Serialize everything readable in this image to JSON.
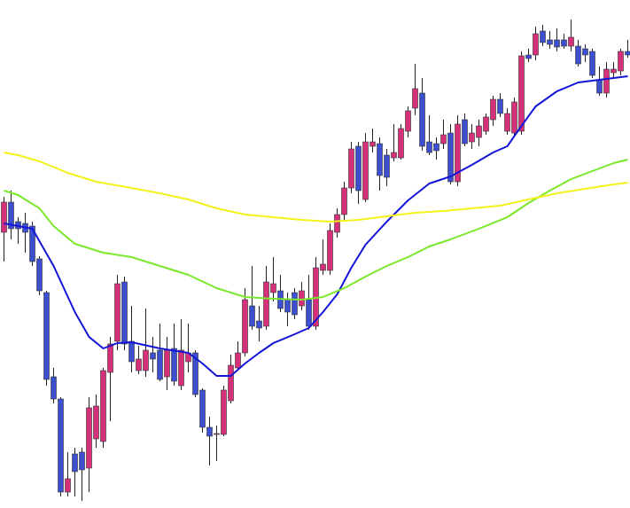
{
  "chart_data": {
    "type": "candlestick",
    "ylim": [
      0,
      573
    ],
    "up_color": "#d6307a",
    "down_color": "#3b4fcf",
    "wick_color": "#222222",
    "open": [
      311,
      345,
      323,
      321,
      318,
      281,
      243,
      148,
      123,
      18,
      61,
      63,
      45,
      78,
      75,
      153,
      188,
      255,
      188,
      155,
      155,
      175,
      178,
      148,
      180,
      138,
      165,
      175,
      133,
      91,
      83,
      83,
      121,
      158,
      175,
      228,
      211,
      205,
      243,
      245,
      235,
      243,
      228,
      235,
      205,
      268,
      268,
      311,
      331,
      361,
      408,
      348,
      408,
      411,
      398,
      395,
      395,
      425,
      451,
      468,
      413,
      411,
      411,
      423,
      368,
      438,
      413,
      418,
      425,
      438,
      461,
      425,
      423,
      425,
      511,
      511,
      538,
      528,
      528,
      528,
      521,
      521,
      518,
      515,
      483,
      468,
      491,
      493,
      515
    ],
    "close": [
      345,
      315,
      315,
      311,
      278,
      245,
      145,
      123,
      18,
      33,
      41,
      43,
      113,
      115,
      155,
      185,
      253,
      185,
      165,
      168,
      178,
      168,
      145,
      178,
      143,
      178,
      175,
      128,
      91,
      81,
      84,
      133,
      161,
      175,
      235,
      205,
      203,
      255,
      253,
      225,
      221,
      218,
      245,
      205,
      271,
      275,
      313,
      331,
      361,
      405,
      358,
      413,
      413,
      375,
      373,
      401,
      428,
      448,
      473,
      408,
      401,
      403,
      421,
      368,
      433,
      411,
      423,
      431,
      441,
      461,
      445,
      445,
      458,
      510,
      507,
      535,
      525,
      523,
      520,
      521,
      531,
      501,
      511,
      488,
      468,
      495,
      495,
      515,
      511
    ],
    "high": [
      351,
      358,
      328,
      333,
      323,
      284,
      245,
      158,
      125,
      63,
      68,
      68,
      125,
      128,
      158,
      193,
      263,
      261,
      228,
      183,
      225,
      193,
      208,
      193,
      208,
      213,
      208,
      178,
      135,
      103,
      93,
      138,
      173,
      188,
      248,
      273,
      228,
      273,
      283,
      263,
      243,
      248,
      255,
      263,
      283,
      303,
      321,
      338,
      368,
      413,
      413,
      423,
      428,
      418,
      405,
      433,
      433,
      453,
      501,
      485,
      443,
      418,
      438,
      433,
      443,
      445,
      433,
      438,
      445,
      465,
      468,
      451,
      463,
      515,
      518,
      543,
      545,
      538,
      541,
      535,
      551,
      528,
      523,
      518,
      498,
      503,
      503,
      518,
      528
    ],
    "low": [
      278,
      303,
      298,
      288,
      273,
      240,
      138,
      118,
      13,
      13,
      13,
      8,
      18,
      68,
      68,
      98,
      178,
      178,
      153,
      151,
      148,
      153,
      143,
      133,
      138,
      133,
      153,
      125,
      85,
      48,
      53,
      81,
      118,
      155,
      171,
      201,
      188,
      201,
      233,
      221,
      205,
      213,
      223,
      201,
      201,
      263,
      263,
      305,
      323,
      355,
      343,
      345,
      401,
      358,
      363,
      391,
      393,
      418,
      443,
      403,
      398,
      393,
      405,
      365,
      363,
      408,
      405,
      408,
      421,
      431,
      441,
      421,
      418,
      421,
      503,
      505,
      521,
      518,
      515,
      518,
      515,
      498,
      503,
      485,
      465,
      463,
      485,
      488,
      508
    ],
    "lines": [
      {
        "color": "#1414d8",
        "x": [
          0,
          4,
          7,
          10,
          12,
          14,
          16,
          18,
          22,
          26,
          28,
          30,
          32,
          34,
          36,
          38,
          41,
          43,
          45,
          47,
          49,
          51,
          54,
          57,
          60,
          63,
          66,
          69,
          71,
          73,
          75,
          78,
          81,
          84,
          87,
          88
        ],
        "values": [
          321,
          315,
          273,
          221,
          193,
          180,
          186,
          187,
          180,
          175,
          163,
          149,
          149,
          163,
          175,
          186,
          196,
          203,
          221,
          241,
          271,
          297,
          323,
          347,
          366,
          374,
          387,
          401,
          408,
          431,
          453,
          470,
          480,
          483,
          486,
          487
        ]
      },
      {
        "color": "#7ae82a",
        "x": [
          0,
          2,
          5,
          7,
          10,
          14,
          18,
          22,
          26,
          30,
          34,
          38,
          42,
          45,
          48,
          51,
          54,
          57,
          60,
          63,
          67,
          71,
          74,
          77,
          80,
          83,
          86,
          88
        ],
        "values": [
          358,
          353,
          338,
          318,
          298,
          288,
          283,
          273,
          263,
          248,
          238,
          236,
          235,
          238,
          248,
          261,
          273,
          283,
          295,
          303,
          315,
          328,
          344,
          358,
          371,
          380,
          389,
          393
        ]
      },
      {
        "color": "#f2f21a",
        "x": [
          0,
          2,
          5,
          9,
          13,
          18,
          22,
          26,
          30,
          34,
          38,
          42,
          46,
          50,
          54,
          58,
          62,
          66,
          70,
          74,
          78,
          82,
          86,
          88
        ],
        "values": [
          401,
          398,
          391,
          378,
          368,
          361,
          355,
          348,
          338,
          331,
          328,
          325,
          323,
          325,
          329,
          333,
          335,
          338,
          341,
          348,
          355,
          360,
          365,
          367
        ]
      }
    ]
  }
}
